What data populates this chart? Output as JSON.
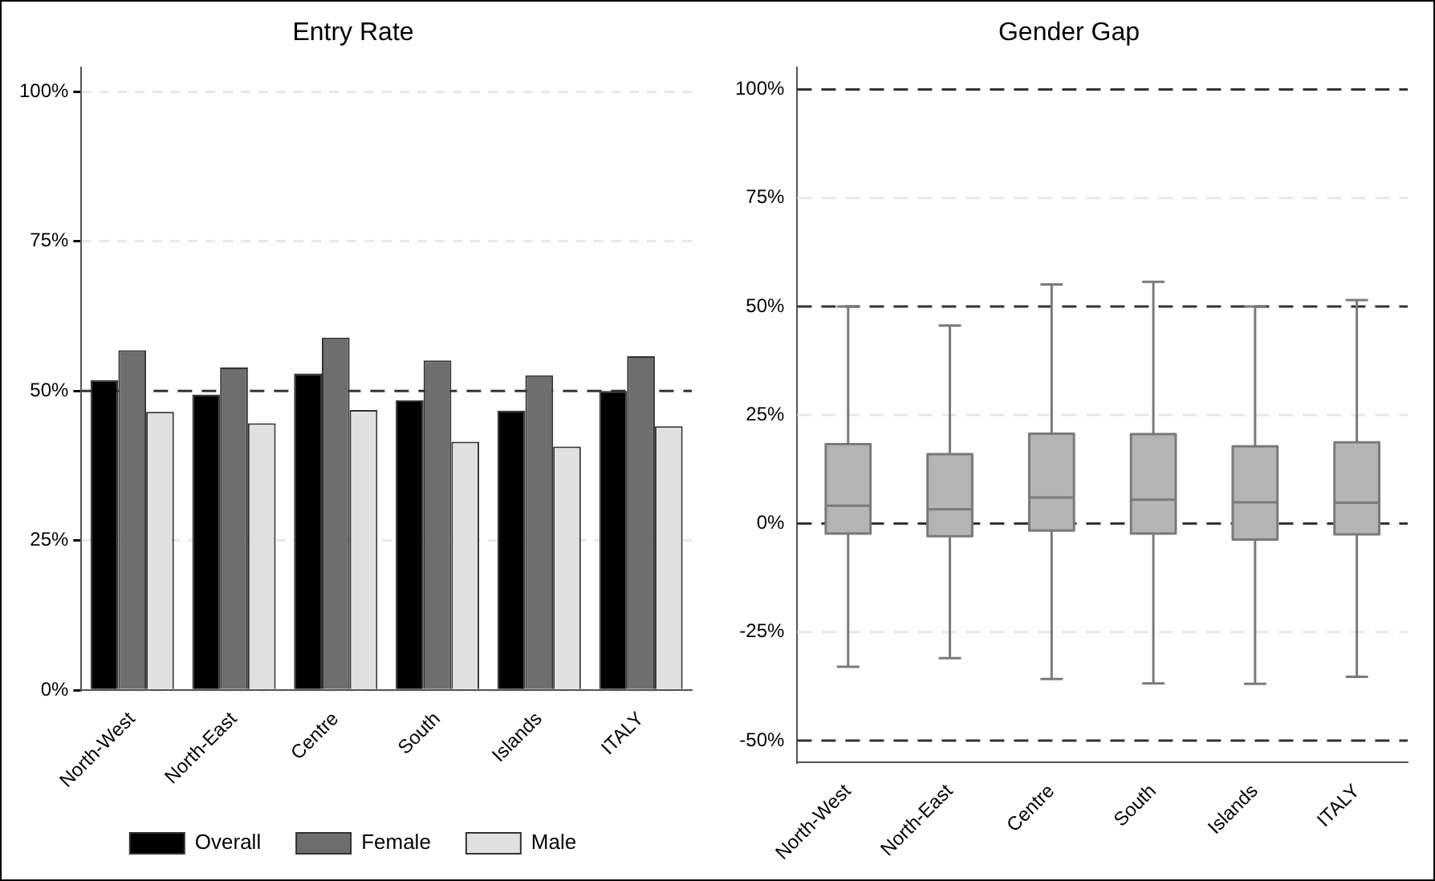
{
  "chart_data": [
    {
      "type": "bar",
      "title": "Entry Rate",
      "categories": [
        "North-West",
        "North-East",
        "Centre",
        "South",
        "Islands",
        "ITALY"
      ],
      "series": [
        {
          "name": "Overall",
          "color": "#000000",
          "values": [
            51.8,
            49.4,
            52.9,
            48.4,
            46.7,
            50.0
          ]
        },
        {
          "name": "Female",
          "color": "#6e6e6e",
          "values": [
            56.8,
            53.9,
            58.9,
            55.1,
            52.6,
            55.8
          ]
        },
        {
          "name": "Male",
          "color": "#e0e0e0",
          "values": [
            46.5,
            44.6,
            46.8,
            41.5,
            40.7,
            44.1
          ]
        }
      ],
      "ylim": [
        0,
        104
      ],
      "yticks": [
        {
          "value": 0,
          "label": "0%"
        },
        {
          "value": 25,
          "label": "25%"
        },
        {
          "value": 50,
          "label": "50%"
        },
        {
          "value": 75,
          "label": "75%"
        },
        {
          "value": 100,
          "label": "100%"
        }
      ],
      "grid": "y",
      "legend": "bottom",
      "ref_lines": [
        {
          "axis": "y",
          "value": 50,
          "label": null
        }
      ]
    },
    {
      "type": "box",
      "title": "Gender Gap",
      "categories": [
        "North-West",
        "North-East",
        "Centre",
        "South",
        "Islands",
        "ITALY"
      ],
      "series": [
        {
          "color": "#b4b4b4",
          "boxes": [
            {
              "low": -33,
              "q1": -2.3,
              "median": 4.1,
              "q3": 18.3,
              "high": 50
            },
            {
              "low": -31,
              "q1": -2.9,
              "median": 3.3,
              "q3": 16,
              "high": 45.6
            },
            {
              "low": -35.8,
              "q1": -1.6,
              "median": 6,
              "q3": 20.7,
              "high": 55.1
            },
            {
              "low": -36.8,
              "q1": -2.3,
              "median": 5.5,
              "q3": 20.6,
              "high": 55.7
            },
            {
              "low": -36.9,
              "q1": -3.7,
              "median": 4.9,
              "q3": 17.8,
              "high": 50
            },
            {
              "low": -35.3,
              "q1": -2.5,
              "median": 4.8,
              "q3": 18.7,
              "high": 51.5
            }
          ]
        }
      ],
      "ylim": [
        -55,
        105
      ],
      "yticks": [
        {
          "value": -50,
          "label": "-50%"
        },
        {
          "value": -25,
          "label": "-25%"
        },
        {
          "value": 0,
          "label": "0%"
        },
        {
          "value": 25,
          "label": "25%"
        },
        {
          "value": 50,
          "label": "50%"
        },
        {
          "value": 75,
          "label": "75%"
        },
        {
          "value": 100,
          "label": "100%"
        }
      ],
      "ref_lines": [
        {
          "axis": "y",
          "value": 100,
          "label": null
        },
        {
          "axis": "y",
          "value": 50,
          "label": null
        },
        {
          "axis": "y",
          "value": 0,
          "label": null
        },
        {
          "axis": "y",
          "value": -50,
          "label": null
        },
        {
          "axis": "y",
          "value": 75,
          "label": null,
          "color": "#e8e8e8"
        },
        {
          "axis": "y",
          "value": 25,
          "label": null,
          "color": "#e8e8e8"
        },
        {
          "axis": "y",
          "value": -25,
          "label": null,
          "color": "#e8e8e8"
        }
      ]
    }
  ]
}
